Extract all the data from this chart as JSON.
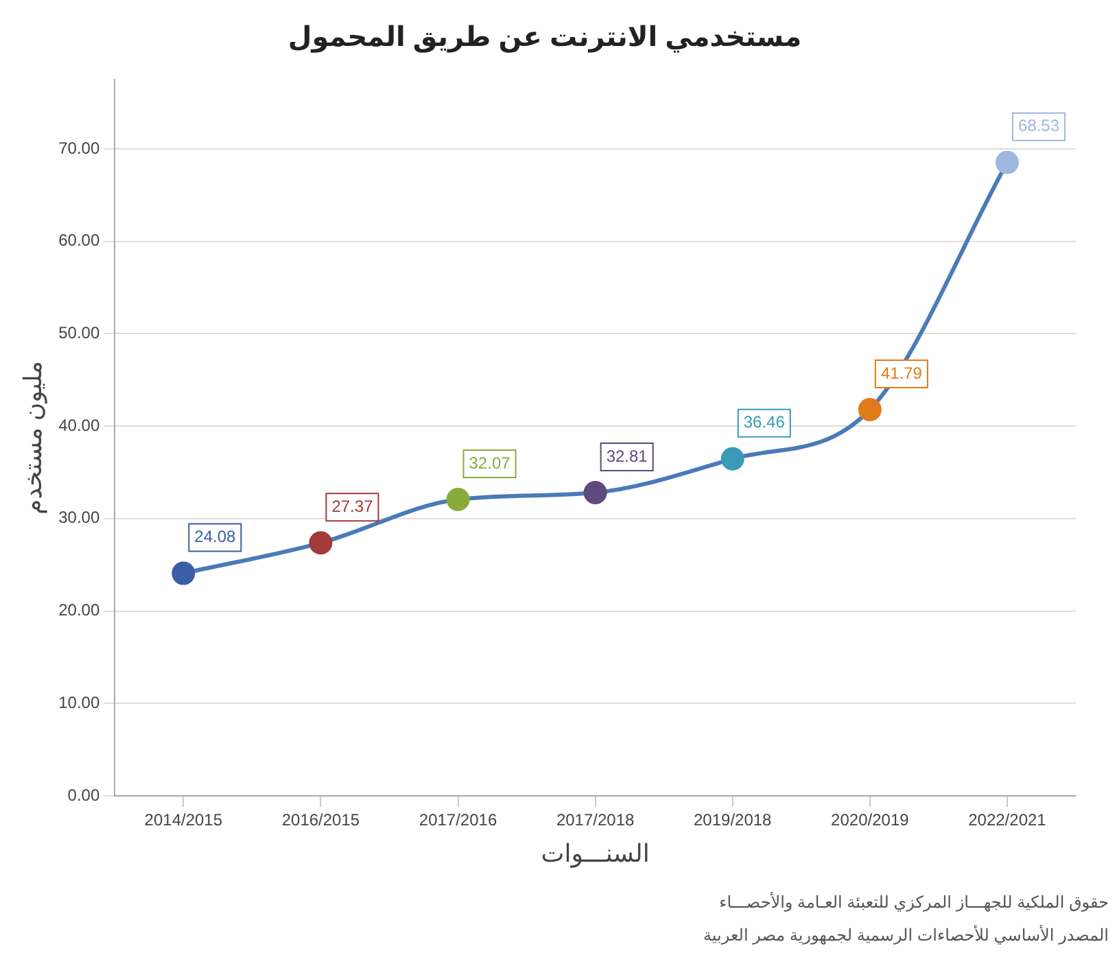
{
  "chart_data": {
    "type": "line",
    "title": "مستخدمي الانترنت عن طريق المحمول",
    "xlabel": "السنـــوات",
    "ylabel": "مليون مستخدم",
    "categories": [
      "2014/2015",
      "2016/2015",
      "2017/2016",
      "2017/2018",
      "2019/2018",
      "2020/2019",
      "2022/2021"
    ],
    "series": [
      {
        "color": "#4a7ab8",
        "values": [
          24.08,
          27.37,
          32.07,
          32.81,
          36.46,
          41.79,
          68.53
        ],
        "colors": [
          "#3b5ea6",
          "#a33a3a",
          "#8aab3c",
          "#5e4a7e",
          "#3a9ab8",
          "#e07b1a",
          "#9fb8e0"
        ]
      }
    ],
    "ylim": [
      0,
      77.5
    ],
    "yticks": [
      {
        "value": 0,
        "label": "0.00"
      },
      {
        "value": 10,
        "label": "10.00"
      },
      {
        "value": 20,
        "label": "20.00"
      },
      {
        "value": 30,
        "label": "30.00"
      },
      {
        "value": 40,
        "label": "40.00"
      },
      {
        "value": 50,
        "label": "50.00"
      },
      {
        "value": 60,
        "label": "60.00"
      },
      {
        "value": 70,
        "label": "70.00"
      }
    ],
    "grid": "y",
    "legend": false,
    "marker": "circle",
    "line_style": "solid",
    "data_labels": true,
    "annotations": [
      "حقوق الملكية للجهـــاز المركزي للتعبئة العـامة والأحصـــاء",
      "المصدر الأساسي للأحصاءات الرسمية لجمهورية مصر العربية"
    ]
  }
}
